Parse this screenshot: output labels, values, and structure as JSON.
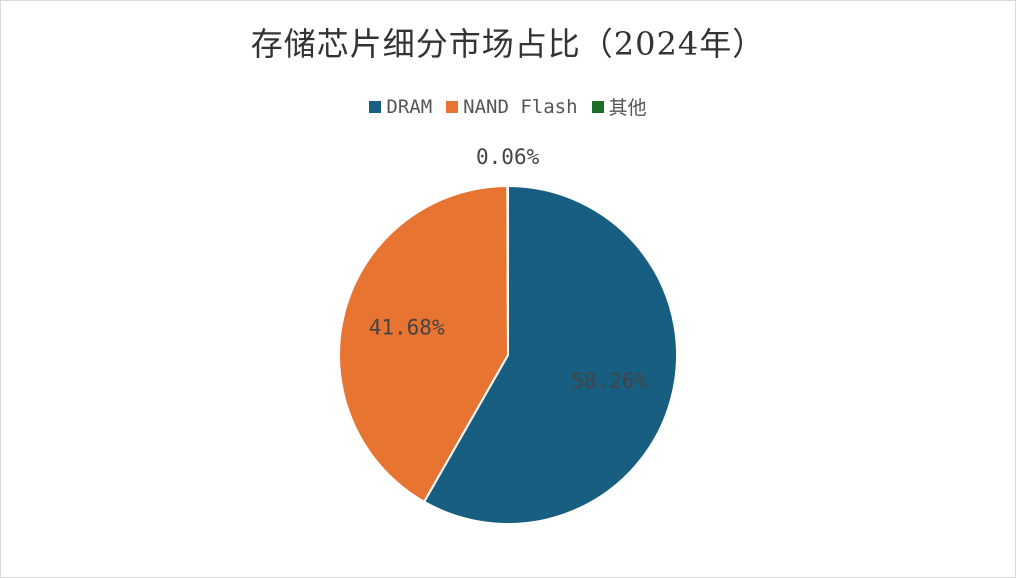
{
  "chart_data": {
    "type": "pie",
    "title": "存储芯片细分市场占比（2024年）",
    "series": [
      {
        "name": "DRAM",
        "value": 58.26,
        "label": "58.26%",
        "color": "#175e80"
      },
      {
        "name": "NAND Flash",
        "value": 41.68,
        "label": "41.68%",
        "color": "#e87432"
      },
      {
        "name": "其他",
        "value": 0.06,
        "label": "0.06%",
        "color": "#1e6e2a"
      }
    ],
    "legend": "top"
  }
}
